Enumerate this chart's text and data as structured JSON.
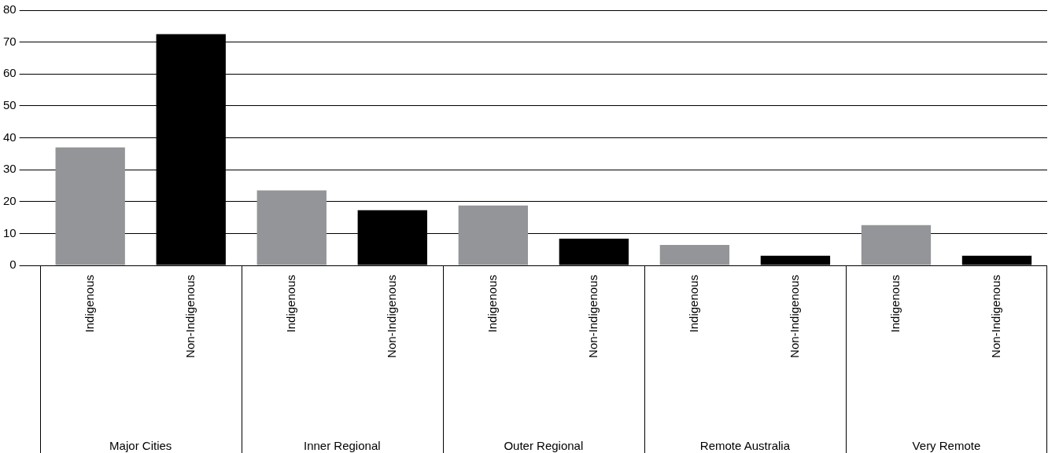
{
  "chart_data": {
    "type": "bar",
    "categories": [
      "Indigenous",
      "Non-Indigenous",
      "Indigenous",
      "Non-Indigenous",
      "Indigenous",
      "Non-Indigenous",
      "Indigenous",
      "Non-Indigenous",
      "Indigenous",
      "Non-Indigenous"
    ],
    "values": [
      37,
      72.5,
      23.5,
      17.3,
      18.8,
      8.4,
      6.4,
      3,
      12.6,
      3
    ],
    "colors": [
      "#939598",
      "#000000",
      "#939598",
      "#000000",
      "#939598",
      "#000000",
      "#939598",
      "#000000",
      "#939598",
      "#000000"
    ],
    "annotations": [
      "Major Cities",
      "Inner Regional",
      "Outer Regional",
      "Remote Australia",
      "Very Remote"
    ],
    "ylim": [
      0,
      80
    ],
    "yticks": [
      0,
      10,
      20,
      30,
      40,
      50,
      60,
      70,
      80
    ],
    "grid": "y",
    "legend": false
  }
}
